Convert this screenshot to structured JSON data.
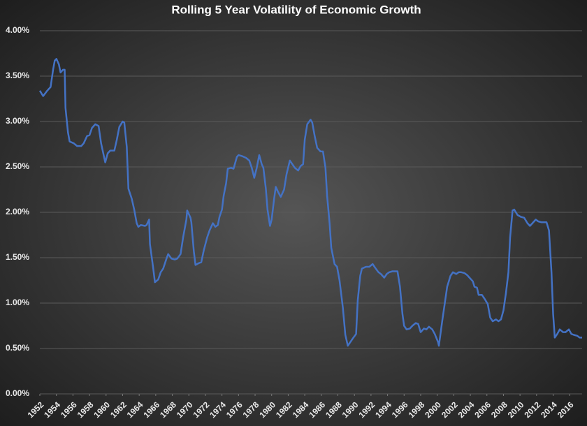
{
  "chart_data": {
    "type": "line",
    "title": "Rolling 5 Year Volatility of Economic Growth",
    "x": [
      1952.0,
      1952.4,
      1952.9,
      1953.3,
      1953.6,
      1953.8,
      1954.0,
      1954.3,
      1954.5,
      1954.8,
      1955.0,
      1955.1,
      1955.4,
      1955.6,
      1956.1,
      1956.5,
      1957.0,
      1957.3,
      1957.7,
      1958.0,
      1958.3,
      1958.7,
      1959.1,
      1959.4,
      1959.9,
      1960.2,
      1960.5,
      1961.0,
      1961.3,
      1961.6,
      1962.0,
      1962.2,
      1962.5,
      1962.7,
      1963.1,
      1963.4,
      1963.7,
      1963.9,
      1964.2,
      1964.7,
      1964.9,
      1965.2,
      1965.3,
      1965.7,
      1965.9,
      1966.3,
      1966.6,
      1966.9,
      1967.3,
      1967.5,
      1967.9,
      1968.3,
      1968.6,
      1969.0,
      1969.3,
      1969.7,
      1969.8,
      1970.2,
      1970.3,
      1970.6,
      1970.8,
      1971.2,
      1971.5,
      1971.8,
      1972.2,
      1972.5,
      1972.9,
      1973.2,
      1973.5,
      1973.7,
      1974.0,
      1974.2,
      1974.5,
      1974.7,
      1975.1,
      1975.4,
      1975.8,
      1976.0,
      1976.4,
      1976.9,
      1977.3,
      1977.6,
      1977.9,
      1978.2,
      1978.5,
      1978.8,
      1979.0,
      1979.3,
      1979.5,
      1979.8,
      1980.0,
      1980.3,
      1980.5,
      1980.8,
      1981.1,
      1981.5,
      1981.8,
      1982.2,
      1982.5,
      1982.8,
      1983.2,
      1983.5,
      1983.8,
      1984.0,
      1984.3,
      1984.7,
      1984.9,
      1985.2,
      1985.5,
      1985.9,
      1986.2,
      1986.5,
      1986.7,
      1987.0,
      1987.2,
      1987.6,
      1987.9,
      1988.2,
      1988.6,
      1988.9,
      1989.2,
      1989.5,
      1989.8,
      1990.2,
      1990.4,
      1990.7,
      1990.9,
      1991.4,
      1991.8,
      1992.2,
      1992.5,
      1992.9,
      1993.2,
      1993.6,
      1993.9,
      1994.2,
      1994.6,
      1994.9,
      1995.2,
      1995.5,
      1995.8,
      1996.0,
      1996.3,
      1996.7,
      1997.0,
      1997.4,
      1997.7,
      1998.0,
      1998.4,
      1998.7,
      1999.0,
      1999.4,
      1999.7,
      2000.1,
      2000.2,
      2000.6,
      2000.9,
      2001.2,
      2001.6,
      2001.9,
      2002.3,
      2002.6,
      2002.9,
      2003.3,
      2003.6,
      2003.9,
      2004.3,
      2004.5,
      2004.8,
      2005.0,
      2005.4,
      2005.7,
      2006.1,
      2006.4,
      2006.7,
      2007.1,
      2007.4,
      2007.7,
      2008.0,
      2008.3,
      2008.6,
      2008.8,
      2009.1,
      2009.3,
      2009.7,
      2010.1,
      2010.5,
      2010.9,
      2011.2,
      2011.5,
      2011.9,
      2012.2,
      2012.6,
      2012.9,
      2013.2,
      2013.5,
      2013.8,
      2014.0,
      2014.2,
      2014.5,
      2014.8,
      2015.2,
      2015.5,
      2015.9,
      2016.2,
      2016.5,
      2016.9,
      2017.2,
      2017.5
    ],
    "series": [
      {
        "name": "Rolling 5 Year Volatility",
        "color": "#4472c4",
        "values": [
          3.34,
          3.28,
          3.34,
          3.38,
          3.57,
          3.67,
          3.69,
          3.63,
          3.54,
          3.57,
          3.57,
          3.15,
          2.88,
          2.78,
          2.76,
          2.73,
          2.73,
          2.76,
          2.84,
          2.85,
          2.93,
          2.97,
          2.95,
          2.76,
          2.55,
          2.65,
          2.68,
          2.68,
          2.8,
          2.94,
          3.0,
          2.99,
          2.72,
          2.26,
          2.15,
          2.03,
          1.88,
          1.84,
          1.86,
          1.85,
          1.86,
          1.92,
          1.65,
          1.38,
          1.23,
          1.26,
          1.34,
          1.38,
          1.49,
          1.54,
          1.49,
          1.48,
          1.49,
          1.54,
          1.72,
          1.92,
          2.02,
          1.94,
          1.89,
          1.57,
          1.42,
          1.44,
          1.45,
          1.58,
          1.72,
          1.8,
          1.88,
          1.84,
          1.86,
          1.95,
          2.03,
          2.18,
          2.32,
          2.48,
          2.49,
          2.48,
          2.61,
          2.63,
          2.62,
          2.6,
          2.57,
          2.49,
          2.38,
          2.49,
          2.63,
          2.53,
          2.49,
          2.26,
          2.03,
          1.85,
          1.92,
          2.15,
          2.28,
          2.22,
          2.17,
          2.25,
          2.42,
          2.57,
          2.53,
          2.49,
          2.46,
          2.51,
          2.53,
          2.8,
          2.97,
          3.02,
          2.99,
          2.84,
          2.71,
          2.67,
          2.67,
          2.49,
          2.18,
          1.88,
          1.61,
          1.43,
          1.4,
          1.25,
          0.95,
          0.65,
          0.53,
          0.57,
          0.61,
          0.66,
          1.03,
          1.3,
          1.38,
          1.4,
          1.4,
          1.43,
          1.39,
          1.34,
          1.32,
          1.28,
          1.32,
          1.34,
          1.35,
          1.35,
          1.35,
          1.18,
          0.88,
          0.75,
          0.71,
          0.72,
          0.75,
          0.78,
          0.77,
          0.68,
          0.72,
          0.71,
          0.74,
          0.71,
          0.66,
          0.57,
          0.53,
          0.8,
          0.99,
          1.18,
          1.3,
          1.34,
          1.32,
          1.34,
          1.34,
          1.33,
          1.31,
          1.28,
          1.24,
          1.18,
          1.17,
          1.09,
          1.09,
          1.05,
          0.99,
          0.84,
          0.8,
          0.82,
          0.8,
          0.82,
          0.92,
          1.11,
          1.34,
          1.72,
          2.02,
          2.03,
          1.97,
          1.95,
          1.94,
          1.88,
          1.85,
          1.88,
          1.92,
          1.9,
          1.89,
          1.89,
          1.89,
          1.8,
          1.34,
          0.88,
          0.62,
          0.66,
          0.71,
          0.68,
          0.68,
          0.71,
          0.66,
          0.65,
          0.64,
          0.62,
          0.62
        ]
      }
    ],
    "xlim": [
      1952,
      2017.5
    ],
    "xticks": [
      1952,
      1954,
      1956,
      1958,
      1960,
      1962,
      1964,
      1966,
      1968,
      1970,
      1972,
      1974,
      1976,
      1978,
      1980,
      1982,
      1984,
      1986,
      1988,
      1990,
      1992,
      1994,
      1996,
      1998,
      2000,
      2002,
      2004,
      2006,
      2008,
      2010,
      2012,
      2014,
      2016
    ],
    "ylim": [
      0,
      4
    ],
    "yticks": [
      {
        "value": 0,
        "label": "0.00%"
      },
      {
        "value": 0.5,
        "label": "0.50%"
      },
      {
        "value": 1,
        "label": "1.00%"
      },
      {
        "value": 1.5,
        "label": "1.50%"
      },
      {
        "value": 2,
        "label": "2.00%"
      },
      {
        "value": 2.5,
        "label": "2.50%"
      },
      {
        "value": 3,
        "label": "3.00%"
      },
      {
        "value": 3.5,
        "label": "3.50%"
      },
      {
        "value": 4,
        "label": "4.00%"
      }
    ],
    "grid": true
  }
}
